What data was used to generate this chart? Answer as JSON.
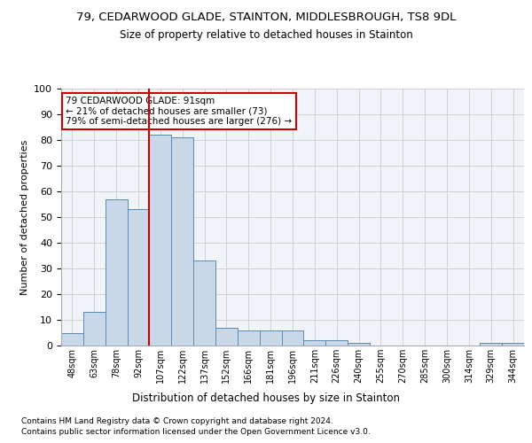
{
  "title1": "79, CEDARWOOD GLADE, STAINTON, MIDDLESBROUGH, TS8 9DL",
  "title2": "Size of property relative to detached houses in Stainton",
  "xlabel": "Distribution of detached houses by size in Stainton",
  "ylabel": "Number of detached properties",
  "categories": [
    "48sqm",
    "63sqm",
    "78sqm",
    "92sqm",
    "107sqm",
    "122sqm",
    "137sqm",
    "152sqm",
    "166sqm",
    "181sqm",
    "196sqm",
    "211sqm",
    "226sqm",
    "240sqm",
    "255sqm",
    "270sqm",
    "285sqm",
    "300sqm",
    "314sqm",
    "329sqm",
    "344sqm"
  ],
  "values": [
    5,
    13,
    57,
    53,
    82,
    81,
    33,
    7,
    6,
    6,
    6,
    2,
    2,
    1,
    0,
    0,
    0,
    0,
    0,
    1,
    1
  ],
  "bar_color": "#c8d8e8",
  "bar_edge_color": "#5a8ab0",
  "vline_x_index": 3.5,
  "vline_color": "#cc0000",
  "annotation_text": "79 CEDARWOOD GLADE: 91sqm\n← 21% of detached houses are smaller (73)\n79% of semi-detached houses are larger (276) →",
  "annotation_box_color": "#ffffff",
  "annotation_box_edge": "#cc0000",
  "ylim": [
    0,
    100
  ],
  "footnote1": "Contains HM Land Registry data © Crown copyright and database right 2024.",
  "footnote2": "Contains public sector information licensed under the Open Government Licence v3.0.",
  "bg_color": "#f0f4f8"
}
